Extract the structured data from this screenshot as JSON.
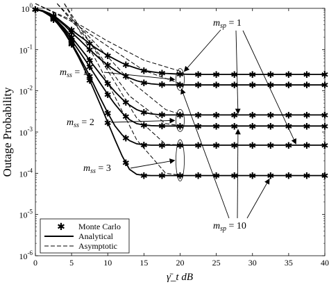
{
  "chart_data": {
    "type": "line",
    "xlabel": "γ̄_t dB",
    "ylabel": "Outage Probability",
    "xlim": [
      0,
      40
    ],
    "ylim": [
      1e-06,
      1
    ],
    "yscale": "log",
    "grid": false,
    "legend_position": "bottom-left",
    "x_ticks": [
      "0",
      "5",
      "10",
      "15",
      "20",
      "25",
      "30",
      "35",
      "40"
    ],
    "y_ticks": [
      {
        "base": "10",
        "exp": "0"
      },
      {
        "base": "10",
        "exp": "-1"
      },
      {
        "base": "10",
        "exp": "-2"
      },
      {
        "base": "10",
        "exp": "-3"
      },
      {
        "base": "10",
        "exp": "-4"
      },
      {
        "base": "10",
        "exp": "-5"
      },
      {
        "base": "10",
        "exp": "-6"
      }
    ],
    "legend": [
      {
        "label": "Monte Carlo",
        "style": "marker"
      },
      {
        "label": "Analytical",
        "style": "solid"
      },
      {
        "label": "Asymptotic",
        "style": "dashed"
      }
    ],
    "x": [
      0,
      1,
      2,
      3,
      4,
      5,
      6,
      7,
      8,
      9,
      10,
      11,
      12,
      13,
      14,
      15,
      16,
      17,
      18,
      19,
      20,
      21,
      22,
      23,
      24,
      25,
      26,
      27,
      28,
      29,
      30,
      31,
      32,
      33,
      34,
      35,
      36,
      37,
      38,
      39,
      40
    ],
    "series": [
      {
        "group": "m_ss = 1",
        "values": [
          0.95,
          0.88,
          0.75,
          0.58,
          0.42,
          0.3,
          0.22,
          0.163,
          0.12,
          0.092,
          0.072,
          0.058,
          0.047,
          0.04,
          0.035,
          0.031,
          0.029,
          0.0275,
          0.0265,
          0.0258,
          0.0254,
          0.0252,
          0.0251,
          0.025,
          0.025,
          0.025,
          0.025,
          0.025,
          0.025,
          0.025,
          0.025,
          0.025,
          0.025,
          0.025,
          0.025,
          0.025,
          0.025,
          0.025,
          0.025,
          0.025,
          0.025
        ]
      },
      {
        "group": "m_ss = 1",
        "values": [
          0.95,
          0.87,
          0.72,
          0.55,
          0.39,
          0.26,
          0.18,
          0.12,
          0.083,
          0.058,
          0.042,
          0.032,
          0.025,
          0.0205,
          0.0175,
          0.0158,
          0.0148,
          0.0143,
          0.014,
          0.0139,
          0.0139,
          0.0139,
          0.0139,
          0.0139,
          0.0139,
          0.0139,
          0.0139,
          0.0139,
          0.0139,
          0.0139,
          0.0139,
          0.0139,
          0.0139,
          0.0139,
          0.0139,
          0.0139,
          0.0139,
          0.0139,
          0.0139,
          0.0139,
          0.0139
        ]
      },
      {
        "group": "m_ss = 2",
        "values": [
          0.95,
          0.86,
          0.7,
          0.5,
          0.33,
          0.2,
          0.12,
          0.072,
          0.042,
          0.025,
          0.015,
          0.0095,
          0.0063,
          0.0045,
          0.0035,
          0.003,
          0.00275,
          0.00265,
          0.0026,
          0.0026,
          0.0026,
          0.0026,
          0.0026,
          0.0026,
          0.0026,
          0.0026,
          0.0026,
          0.0026,
          0.0026,
          0.0026,
          0.0026,
          0.0026,
          0.0026,
          0.0026,
          0.0026,
          0.0026,
          0.0026,
          0.0026,
          0.0026,
          0.0026,
          0.0026
        ]
      },
      {
        "group": "m_ss = 2",
        "values": [
          0.95,
          0.85,
          0.68,
          0.47,
          0.3,
          0.17,
          0.095,
          0.052,
          0.028,
          0.015,
          0.0082,
          0.0047,
          0.0029,
          0.002,
          0.0016,
          0.00148,
          0.00143,
          0.00141,
          0.0014,
          0.0014,
          0.0014,
          0.0014,
          0.0014,
          0.0014,
          0.0014,
          0.0014,
          0.0014,
          0.0014,
          0.0014,
          0.0014,
          0.0014,
          0.0014,
          0.0014,
          0.0014,
          0.0014,
          0.0014,
          0.0014,
          0.0014,
          0.0014,
          0.0014,
          0.0014
        ]
      },
      {
        "group": "m_ss = 3",
        "values": [
          0.95,
          0.85,
          0.67,
          0.45,
          0.27,
          0.145,
          0.072,
          0.034,
          0.015,
          0.0065,
          0.0029,
          0.0014,
          0.00085,
          0.00062,
          0.00052,
          0.00049,
          0.00048,
          0.00048,
          0.00048,
          0.00048,
          0.00048,
          0.00048,
          0.00048,
          0.00048,
          0.00048,
          0.00048,
          0.00048,
          0.00048,
          0.00048,
          0.00048,
          0.00048,
          0.00048,
          0.00048,
          0.00048,
          0.00048,
          0.00048,
          0.00048,
          0.00048,
          0.00048,
          0.00048,
          0.00048
        ]
      },
      {
        "group": "m_ss = 3",
        "values": [
          0.95,
          0.85,
          0.66,
          0.44,
          0.26,
          0.135,
          0.064,
          0.028,
          0.0115,
          0.0045,
          0.0017,
          0.00065,
          0.00026,
          0.000125,
          9.4e-05,
          8.9e-05,
          8.8e-05,
          8.8e-05,
          8.8e-05,
          8.8e-05,
          8.8e-05,
          8.8e-05,
          8.8e-05,
          8.8e-05,
          8.8e-05,
          8.8e-05,
          8.8e-05,
          8.8e-05,
          8.8e-05,
          8.8e-05,
          8.8e-05,
          8.8e-05,
          8.8e-05,
          8.8e-05,
          8.8e-05,
          8.8e-05,
          8.8e-05,
          8.8e-05,
          8.8e-05,
          8.8e-05,
          8.8e-05
        ]
      }
    ],
    "asymptotic_series": [
      {
        "x": [
          0,
          5,
          10,
          15,
          20
        ],
        "values": [
          1.3,
          0.52,
          0.16,
          0.055,
          0.03
        ]
      },
      {
        "x": [
          0,
          5,
          10,
          15,
          20
        ],
        "values": [
          1.3,
          0.48,
          0.12,
          0.031,
          0.015
        ]
      },
      {
        "x": [
          3,
          8,
          13,
          18,
          20
        ],
        "values": [
          1.3,
          0.16,
          0.018,
          0.0035,
          0.0027
        ]
      },
      {
        "x": [
          3,
          8,
          13,
          18,
          20
        ],
        "values": [
          1.3,
          0.12,
          0.0075,
          0.0016,
          0.00143
        ]
      },
      {
        "x": [
          4,
          9,
          14,
          18,
          20
        ],
        "values": [
          1.3,
          0.06,
          0.0022,
          0.0005,
          0.00049
        ]
      },
      {
        "x": [
          4,
          9,
          14,
          18,
          20
        ],
        "values": [
          1.3,
          0.035,
          0.00065,
          0.0001,
          9e-05
        ]
      }
    ],
    "marker_x": [
      0,
      2.5,
      5,
      7.5,
      10,
      12.5,
      15,
      17.5,
      20,
      22.5,
      25,
      27.5,
      30,
      32.5,
      35,
      37.5,
      40
    ],
    "annotations": {
      "msp1": {
        "base": "m",
        "sub": "sp",
        "rest": " = 1"
      },
      "msp10": {
        "base": "m",
        "sub": "sp",
        "rest": " = 10"
      },
      "mss1": {
        "base": "m",
        "sub": "ss",
        "rest": " = 1"
      },
      "mss2": {
        "base": "m",
        "sub": "ss",
        "rest": " = 2"
      },
      "mss3": {
        "base": "m",
        "sub": "ss",
        "rest": " = 3"
      }
    }
  }
}
